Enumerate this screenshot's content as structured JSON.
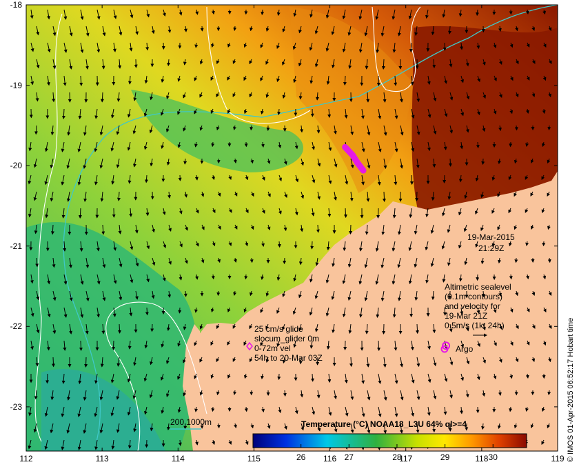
{
  "map": {
    "lon_ticks": [
      "112",
      "113",
      "114",
      "115",
      "116",
      "117",
      "118",
      "119"
    ],
    "lat_ticks": [
      "-18",
      "-19",
      "-20",
      "-21",
      "-22",
      "-23"
    ],
    "lon_range": [
      112,
      119
    ],
    "lat_range": [
      -23.55,
      -18
    ],
    "colors": {
      "land": "#f9c49c",
      "contour_200": "#3fc8c8",
      "contour_1000": "#ffffff",
      "glider": "#e619e6",
      "arrow": "#000000"
    }
  },
  "annotations": {
    "date": "19-Mar-2015",
    "time": "21:29Z",
    "altimetry": [
      "Altimetric sealevel",
      "(0.1m contours)",
      "and velocity for",
      "19-Mar 21Z",
      "0.5m/s (1kt 24h)"
    ],
    "glider": [
      "25 cm/s glide",
      "slocum_glider 0m",
      "0-72m vel",
      "54h to 20-Mar 03Z"
    ],
    "argo": "Argo",
    "depth_legend": "200  1000m",
    "credit": "© IMOS 01-Apr-2015 06:52:17 Hobart time"
  },
  "colorbar": {
    "title": "Temperature (°C) NOAA18_L3U 64% ql>=4",
    "ticks": [
      "26",
      "27",
      "28",
      "29",
      "30"
    ],
    "tick_values": [
      26,
      27,
      28,
      29,
      30
    ],
    "range": [
      25,
      30.7
    ]
  },
  "glider_track": [
    {
      "lon": 116.2,
      "lat": -19.77
    },
    {
      "lon": 116.3,
      "lat": -19.87
    },
    {
      "lon": 116.36,
      "lat": -19.96
    },
    {
      "lon": 116.44,
      "lat": -20.06
    }
  ],
  "argo_float": {
    "lon": 117.53,
    "lat": -22.24
  }
}
